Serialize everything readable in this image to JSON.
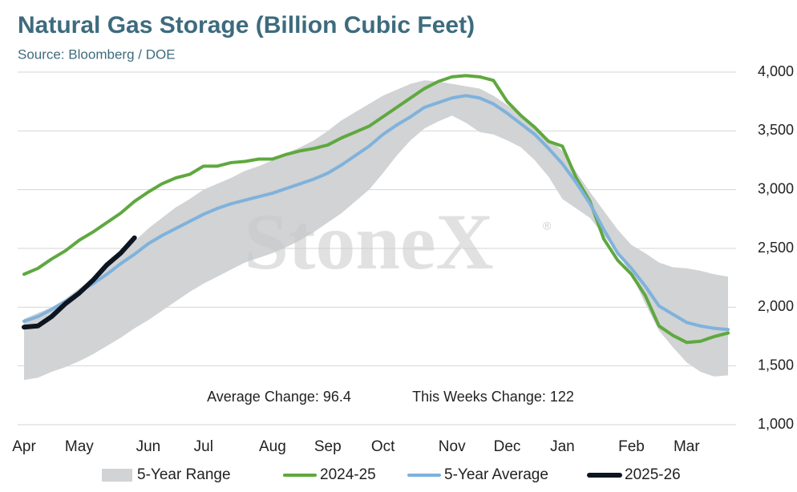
{
  "chart_data": {
    "type": "line",
    "title": "Natural Gas Storage (Billion Cubic Feet)",
    "subtitle": "Source: Bloomberg / DOE",
    "watermark": "StoneX",
    "watermark_mark": "®",
    "annotations": [
      "Average Change: 96.4",
      "This Weeks Change: 122"
    ],
    "categories": [
      "Apr",
      null,
      null,
      null,
      "May",
      null,
      null,
      null,
      null,
      "Jun",
      null,
      null,
      null,
      "Jul",
      null,
      null,
      null,
      null,
      "Aug",
      null,
      null,
      null,
      "Sep",
      null,
      null,
      null,
      "Oct",
      null,
      null,
      null,
      null,
      "Nov",
      null,
      null,
      null,
      "Dec",
      null,
      null,
      null,
      "Jan",
      null,
      null,
      null,
      null,
      "Feb",
      null,
      null,
      null,
      "Mar",
      null,
      null,
      null
    ],
    "ylim": [
      1000,
      4000
    ],
    "yticks": [
      {
        "value": 1000,
        "label": "1,000"
      },
      {
        "value": 1500,
        "label": "1,500"
      },
      {
        "value": 2000,
        "label": "2,000"
      },
      {
        "value": 2500,
        "label": "2,500"
      },
      {
        "value": 3000,
        "label": "3,000"
      },
      {
        "value": 3500,
        "label": "3,500"
      },
      {
        "value": 4000,
        "label": "4,000"
      }
    ],
    "grid": true,
    "legend": "bottom",
    "series": [
      {
        "name": "5-Year Range",
        "color": "#d1d3d4",
        "upper": [
          1900,
          1950,
          2000,
          2070,
          2160,
          2240,
          2340,
          2450,
          2560,
          2670,
          2760,
          2850,
          2920,
          3000,
          3050,
          3100,
          3160,
          3200,
          3250,
          3310,
          3360,
          3420,
          3500,
          3590,
          3660,
          3730,
          3800,
          3850,
          3900,
          3930,
          3920,
          3900,
          3880,
          3860,
          3800,
          3720,
          3640,
          3530,
          3430,
          3330,
          3150,
          2980,
          2820,
          2660,
          2530,
          2460,
          2380,
          2340,
          2330,
          2310,
          2280,
          2260
        ],
        "lower": [
          1380,
          1400,
          1450,
          1490,
          1540,
          1600,
          1670,
          1740,
          1820,
          1890,
          1970,
          2050,
          2130,
          2200,
          2260,
          2320,
          2380,
          2420,
          2460,
          2510,
          2570,
          2640,
          2720,
          2800,
          2900,
          3000,
          3140,
          3290,
          3420,
          3520,
          3580,
          3630,
          3570,
          3490,
          3470,
          3420,
          3360,
          3250,
          3110,
          2920,
          2840,
          2760,
          2610,
          2460,
          2280,
          2030,
          1800,
          1660,
          1530,
          1450,
          1410,
          1420
        ]
      },
      {
        "name": "2024-25",
        "color": "#5fa83f",
        "values": [
          2280,
          2330,
          2410,
          2480,
          2570,
          2640,
          2720,
          2800,
          2900,
          2980,
          3050,
          3100,
          3130,
          3200,
          3200,
          3230,
          3240,
          3260,
          3260,
          3300,
          3330,
          3350,
          3380,
          3440,
          3490,
          3540,
          3620,
          3700,
          3780,
          3860,
          3920,
          3960,
          3970,
          3960,
          3930,
          3750,
          3630,
          3530,
          3410,
          3370,
          3100,
          2900,
          2580,
          2400,
          2280,
          2100,
          1840,
          1760,
          1700,
          1710,
          1750,
          1780
        ]
      },
      {
        "name": "5-Year Average",
        "color": "#7fb2dc",
        "values": [
          1880,
          1920,
          1980,
          2050,
          2130,
          2200,
          2280,
          2370,
          2450,
          2540,
          2610,
          2670,
          2730,
          2790,
          2840,
          2880,
          2910,
          2940,
          2970,
          3010,
          3050,
          3090,
          3140,
          3210,
          3290,
          3370,
          3470,
          3550,
          3620,
          3700,
          3740,
          3780,
          3800,
          3780,
          3730,
          3650,
          3560,
          3470,
          3350,
          3220,
          3060,
          2880,
          2660,
          2460,
          2330,
          2180,
          2010,
          1940,
          1870,
          1840,
          1820,
          1810
        ]
      },
      {
        "name": "2025-26",
        "color": "#0d1520",
        "values": [
          1830,
          1840,
          1920,
          2030,
          2120,
          2230,
          2360,
          2460,
          2590,
          null,
          null,
          null,
          null,
          null,
          null,
          null,
          null,
          null,
          null,
          null,
          null,
          null,
          null,
          null,
          null,
          null,
          null,
          null,
          null,
          null,
          null,
          null,
          null,
          null,
          null,
          null,
          null,
          null,
          null,
          null,
          null,
          null,
          null,
          null,
          null,
          null,
          null,
          null,
          null,
          null,
          null,
          null
        ]
      }
    ]
  }
}
